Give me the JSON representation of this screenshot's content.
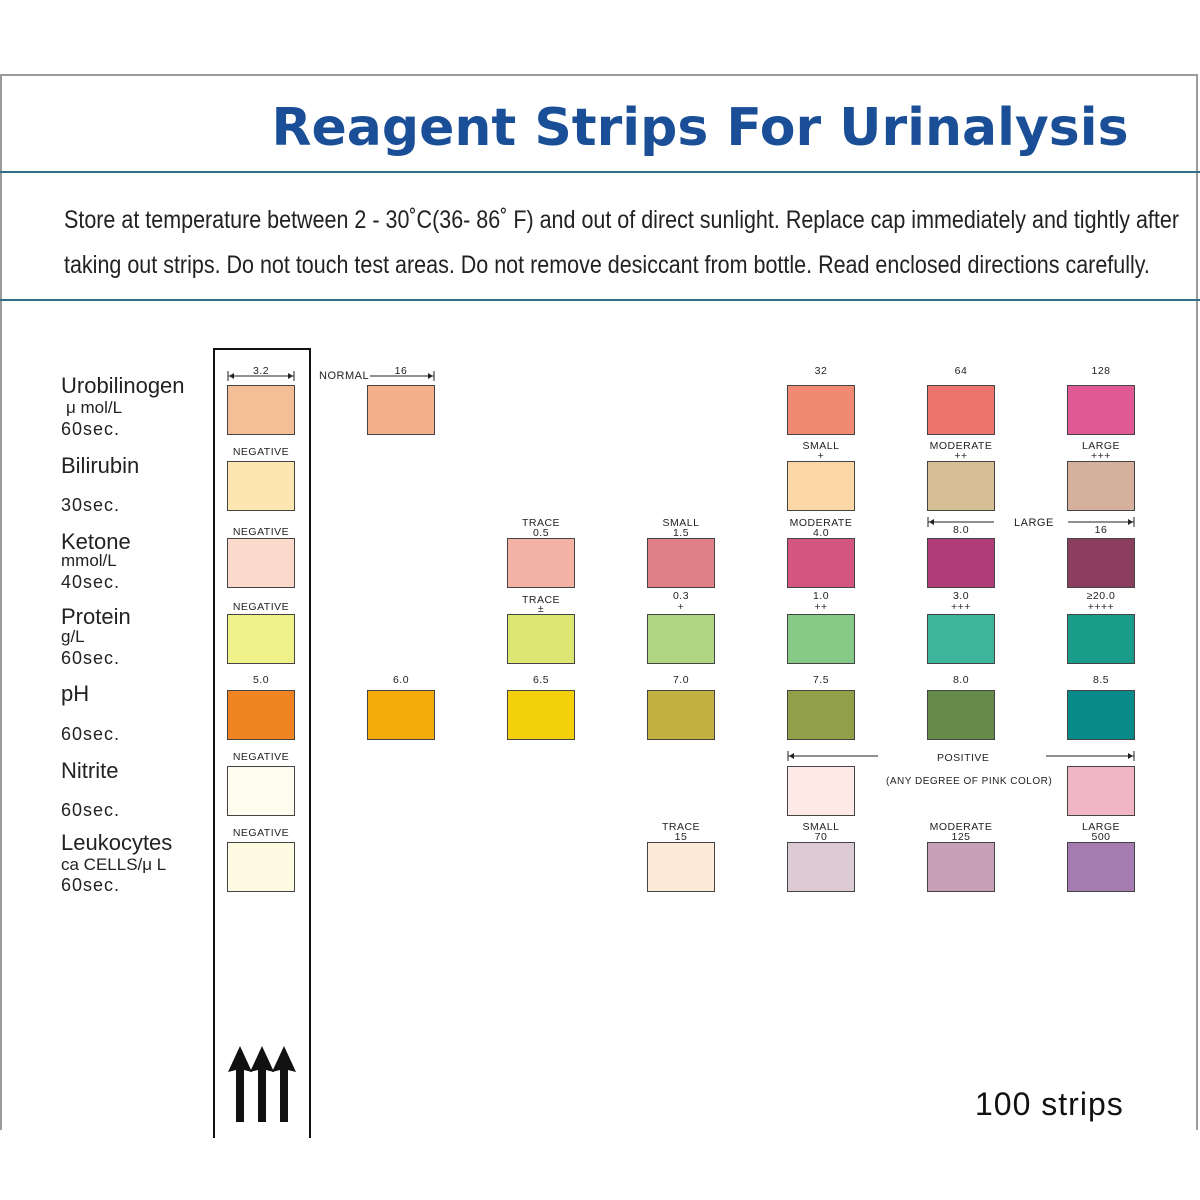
{
  "header": {
    "title": "Reagent Strips For Urinalysis",
    "notice_line1": "Store  at temperature  between 2 - 30˚C(36- 86˚ F) and  out  of direct  sunlight.  Replace  cap immediately  and  tightly after",
    "notice_line2": "taking out strips. Do not  touch test areas. Do not  remove desiccant  from bottle. Read  enclosed directions carefully."
  },
  "tests": [
    {
      "name": "Urobilinogen",
      "unit": "μ mol/L",
      "time": "60sec."
    },
    {
      "name": "Bilirubin",
      "unit": "",
      "time": "30sec."
    },
    {
      "name": "Ketone",
      "unit": "mmol/L",
      "time": "40sec."
    },
    {
      "name": "Protein",
      "unit": "g/L",
      "time": "60sec."
    },
    {
      "name": "pH",
      "unit": "",
      "time": "60sec."
    },
    {
      "name": "Nitrite",
      "unit": "",
      "time": "60sec."
    },
    {
      "name": "Leukocytes",
      "unit": "ca  CELLS/μ L",
      "time": "60sec."
    }
  ],
  "pads": {
    "uro_strip": {
      "label": "3.2",
      "color": "#f4be96"
    },
    "uro_normal": {
      "label": "16",
      "color": "#f3b08a"
    },
    "uro_32": {
      "label": "32",
      "color": "#f08a72"
    },
    "uro_64": {
      "label": "64",
      "color": "#ec746c"
    },
    "uro_128": {
      "label": "128",
      "color": "#e05995"
    },
    "bil_neg": {
      "label": "NEGATIVE",
      "color": "#fde6b0"
    },
    "bil_small": {
      "label": "SMALL",
      "sub": "+",
      "color": "#fbd7a5"
    },
    "bil_mod": {
      "label": "MODERATE",
      "sub": "++",
      "color": "#d6bf94"
    },
    "bil_large": {
      "label": "LARGE",
      "sub": "+++",
      "color": "#d5b09d"
    },
    "ket_neg": {
      "label": "NEGATIVE",
      "color": "#fbd9cb"
    },
    "ket_trace": {
      "label": "TRACE",
      "sub": "0.5",
      "color": "#f4b3a4"
    },
    "ket_small": {
      "label": "SMALL",
      "sub": "1.5",
      "color": "#e2808a"
    },
    "ket_mod": {
      "label": "MODERATE",
      "sub": "4.0",
      "color": "#d45680"
    },
    "ket_80": {
      "label": "8.0",
      "color": "#b03c7a"
    },
    "ket_16": {
      "label": "16",
      "color": "#8c3e5e"
    },
    "pro_neg": {
      "label": "NEGATIVE",
      "color": "#eff28a"
    },
    "pro_trace": {
      "label": "TRACE",
      "sub": "±",
      "color": "#dde672"
    },
    "pro_03": {
      "label": "0.3",
      "sub": "+",
      "color": "#b0d684"
    },
    "pro_10": {
      "label": "1.0",
      "sub": "++",
      "color": "#86c986"
    },
    "pro_30": {
      "label": "3.0",
      "sub": "+++",
      "color": "#3db59a"
    },
    "pro_20": {
      "label": "≥20.0",
      "sub": "++++",
      "color": "#1a9c8a"
    },
    "ph_50": {
      "label": "5.0",
      "color": "#ef8420"
    },
    "ph_60": {
      "label": "6.0",
      "color": "#f4ac0c"
    },
    "ph_65": {
      "label": "6.5",
      "color": "#f4d00c"
    },
    "ph_70": {
      "label": "7.0",
      "color": "#c2b040"
    },
    "ph_75": {
      "label": "7.5",
      "color": "#93a04a"
    },
    "ph_80": {
      "label": "8.0",
      "color": "#668a4a"
    },
    "ph_85": {
      "label": "8.5",
      "color": "#088a88"
    },
    "nit_neg": {
      "label": "NEGATIVE",
      "color": "#fdfcee"
    },
    "nit_pos1": {
      "color": "#fdeae6"
    },
    "nit_pos2": {
      "color": "#f1b6c6"
    },
    "leu_neg": {
      "label": "NEGATIVE",
      "color": "#fdfbe2"
    },
    "leu_trace": {
      "label": "TRACE",
      "sub": "15",
      "color": "#fde9d8"
    },
    "leu_small": {
      "label": "SMALL",
      "sub": "70",
      "color": "#dccad4"
    },
    "leu_mod": {
      "label": "MODERATE",
      "sub": "125",
      "color": "#c6a0b8"
    },
    "leu_large": {
      "label": "LARGE",
      "sub": "500",
      "color": "#a47cb2"
    }
  },
  "annotations": {
    "normal": "NORMAL",
    "large": "LARGE",
    "positive": "POSITIVE",
    "pink_note": "(ANY DEGREE OF PINK COLOR)"
  },
  "footer": {
    "count": "100 strips"
  }
}
